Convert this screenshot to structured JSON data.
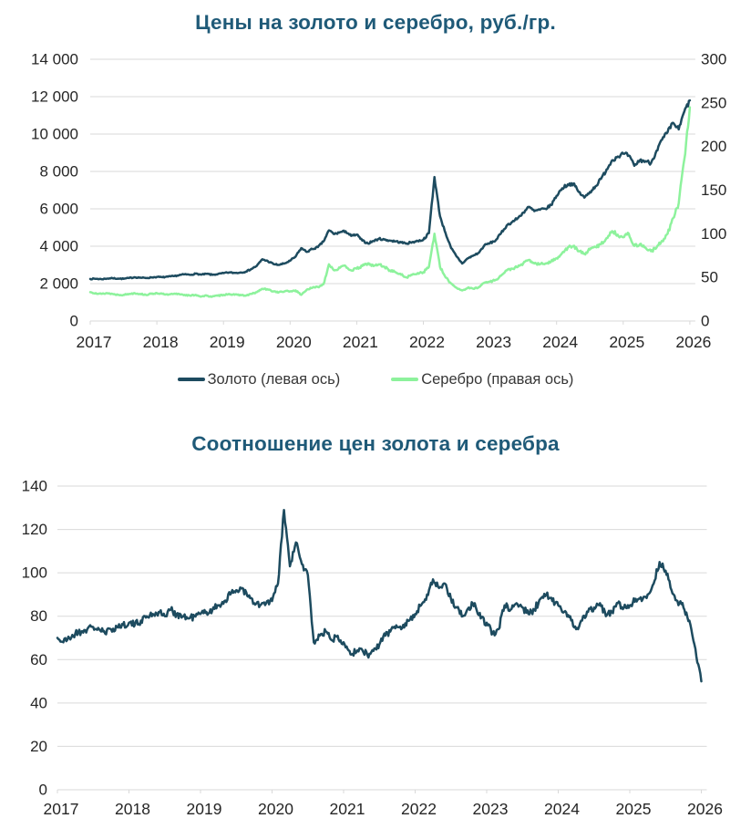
{
  "styles": {
    "title_color": "#1f5a78",
    "legend_text_color": "#373737",
    "grid_color": "#d9d9d9",
    "axis_text_color": "#262626",
    "gold_color": "#1d4b5f",
    "silver_color": "#8df29c",
    "background": "#ffffff"
  },
  "chart_data": [
    {
      "type": "line",
      "title": "Цены на золото и серебро, руб./гр.",
      "x_start_year": 2017,
      "x_step_months": 1,
      "x_tick_labels": [
        "2017",
        "2018",
        "2019",
        "2020",
        "2021",
        "2022",
        "2023",
        "2024",
        "2025",
        "2026"
      ],
      "left_axis": {
        "min": 0,
        "max": 14000,
        "tick_step": 2000,
        "tick_labels_top_to_bottom": [
          "14 000",
          "12 000",
          "10 000",
          "8 000",
          "6 000",
          "4 000",
          "2 000",
          "0"
        ]
      },
      "right_axis": {
        "min": 0,
        "max": 300,
        "tick_step": 50,
        "tick_labels_top_to_bottom": [
          "300",
          "250",
          "200",
          "150",
          "100",
          "50",
          "0"
        ]
      },
      "grid": true,
      "legend_position": "bottom",
      "legend": [
        {
          "id": "gold",
          "label": "Золото (левая ось)",
          "color": "#1d4b5f"
        },
        {
          "id": "silver",
          "label": "Серебро (правая ось)",
          "color": "#8df29c"
        }
      ],
      "series": [
        {
          "id": "gold",
          "name": "Золото (левая ось)",
          "axis": "left",
          "color": "#1d4b5f",
          "values": [
            2250,
            2260,
            2240,
            2270,
            2290,
            2270,
            2260,
            2300,
            2340,
            2320,
            2300,
            2330,
            2360,
            2340,
            2370,
            2400,
            2450,
            2500,
            2470,
            2530,
            2480,
            2520,
            2470,
            2510,
            2560,
            2600,
            2570,
            2590,
            2640,
            2780,
            2950,
            3300,
            3200,
            3050,
            3000,
            3080,
            3220,
            3450,
            3900,
            3700,
            3850,
            3950,
            4250,
            4850,
            4650,
            4750,
            4800,
            4550,
            4620,
            4300,
            4150,
            4280,
            4400,
            4350,
            4300,
            4260,
            4200,
            4150,
            4220,
            4280,
            4350,
            4700,
            7700,
            5600,
            4700,
            3900,
            3450,
            3080,
            3350,
            3500,
            3650,
            4050,
            4170,
            4300,
            4700,
            5100,
            5300,
            5500,
            5800,
            6100,
            5880,
            5950,
            6000,
            6200,
            6700,
            7100,
            7300,
            7350,
            6900,
            6600,
            6900,
            7200,
            7600,
            8100,
            8600,
            8800,
            8950,
            8850,
            8300,
            8600,
            8550,
            8450,
            9100,
            9700,
            10100,
            10600,
            10250,
            11200,
            11800
          ]
        },
        {
          "id": "silver",
          "name": "Серебро (правая ось)",
          "axis": "right",
          "color": "#8df29c",
          "values": [
            33,
            32,
            31,
            32,
            31,
            30,
            30,
            31,
            32,
            31,
            30,
            31,
            32,
            31,
            30,
            31,
            31,
            30,
            29,
            30,
            28,
            29,
            28,
            29,
            30,
            31,
            30,
            30,
            29,
            31,
            33,
            37,
            36,
            34,
            33,
            34,
            34,
            35,
            30,
            36,
            38,
            39,
            42,
            65,
            58,
            61,
            63,
            58,
            60,
            63,
            66,
            63,
            65,
            62,
            58,
            56,
            53,
            50,
            53,
            55,
            56,
            62,
            100,
            62,
            50,
            43,
            38,
            35,
            38,
            37,
            39,
            44,
            45,
            47,
            52,
            58,
            60,
            62,
            66,
            70,
            66,
            65,
            66,
            68,
            72,
            78,
            84,
            86,
            80,
            77,
            82,
            85,
            88,
            95,
            103,
            99,
            96,
            100,
            86,
            88,
            84,
            80,
            84,
            92,
            100,
            118,
            135,
            185,
            245
          ]
        }
      ]
    },
    {
      "type": "line",
      "title": "Соотношение цен золота и серебра",
      "x_start_year": 2017,
      "x_step_months": 1,
      "x_tick_labels": [
        "2017",
        "2018",
        "2019",
        "2020",
        "2021",
        "2022",
        "2023",
        "2024",
        "2025",
        "2026"
      ],
      "left_axis": {
        "min": 0,
        "max": 140,
        "tick_step": 20,
        "tick_labels_top_to_bottom": [
          "140",
          "120",
          "100",
          "80",
          "60",
          "40",
          "20",
          "0"
        ]
      },
      "grid": true,
      "legend_position": "none",
      "series": [
        {
          "id": "ratio",
          "name": "Соотношение цен золота и серебра",
          "axis": "left",
          "color": "#1d4b5f",
          "values": [
            70,
            68,
            70,
            72,
            73,
            74,
            75,
            74,
            72,
            74,
            75,
            76,
            77,
            76,
            78,
            80,
            81,
            82,
            80,
            83,
            81,
            80,
            79,
            80,
            81,
            82,
            83,
            85,
            87,
            90,
            92,
            93,
            89,
            86,
            85,
            86,
            87,
            95,
            129,
            103,
            114,
            104,
            99,
            68,
            71,
            73,
            69,
            71,
            68,
            64,
            63,
            65,
            62,
            64,
            67,
            71,
            74,
            75,
            76,
            78,
            81,
            85,
            90,
            97,
            93,
            95,
            88,
            84,
            80,
            84,
            86,
            79,
            77,
            72,
            74,
            85,
            83,
            86,
            84,
            81,
            83,
            88,
            90,
            87,
            85,
            82,
            80,
            74,
            78,
            82,
            84,
            86,
            80,
            82,
            86,
            84,
            85,
            88,
            87,
            90,
            95,
            105,
            101,
            92,
            87,
            84,
            78,
            65,
            50
          ]
        }
      ]
    }
  ]
}
